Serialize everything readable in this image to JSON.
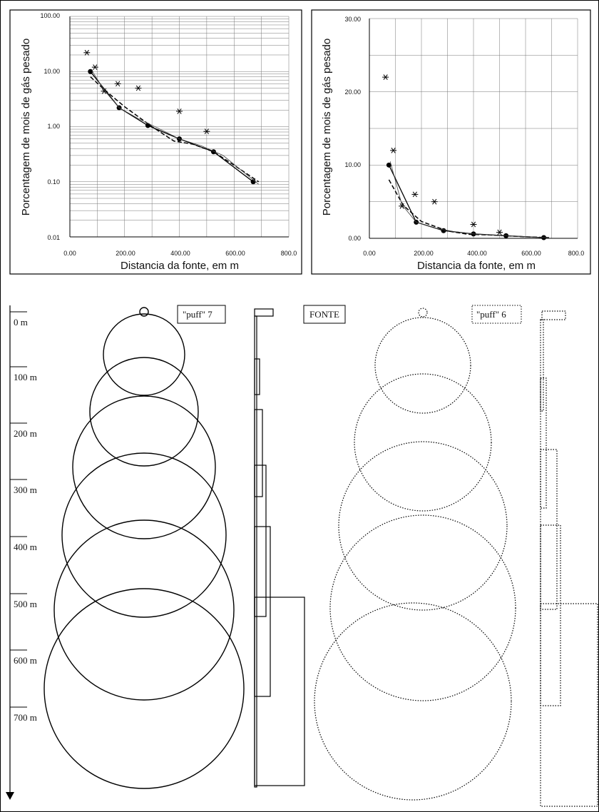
{
  "chart_data": [
    {
      "type": "line",
      "yscale": "log",
      "xlabel": "Distancia da fonte, em m",
      "ylabel": "Porcentagem de mois de gás pesado",
      "xlim": [
        0,
        800
      ],
      "ylim": [
        0.01,
        100
      ],
      "x_ticks": [
        "0.00",
        "200.00",
        "400.00",
        "600.00",
        "800.0"
      ],
      "y_ticks": [
        "0.01",
        "0.10",
        "1.00",
        "10.00",
        "100.00"
      ],
      "series": [
        {
          "style": "dots-solid",
          "x": [
            75,
            180,
            285,
            400,
            525,
            670
          ],
          "y": [
            10,
            2.2,
            1.05,
            0.6,
            0.35,
            0.1
          ]
        },
        {
          "style": "star",
          "x": [
            62,
            92,
            125,
            175,
            250,
            400,
            500
          ],
          "y": [
            22,
            12,
            4.4,
            6,
            5,
            1.9,
            0.82
          ]
        },
        {
          "style": "dashed",
          "x": [
            75,
            130,
            200,
            300,
            380,
            450,
            525,
            600,
            690
          ],
          "y": [
            8,
            4.5,
            2.3,
            1.0,
            0.55,
            0.48,
            0.35,
            0.2,
            0.1
          ]
        },
        {
          "style": "solid-thin",
          "x": [
            80,
            125,
            180,
            250,
            320,
            400,
            480,
            560,
            650,
            690
          ],
          "y": [
            10.5,
            4.6,
            2.2,
            1.4,
            0.95,
            0.6,
            0.45,
            0.3,
            0.13,
            0.09
          ]
        }
      ]
    },
    {
      "type": "line",
      "yscale": "linear",
      "xlabel": "Distancia da fonte, em m",
      "ylabel": "Porcentagem de mois de gás pesado",
      "xlim": [
        0,
        800
      ],
      "ylim": [
        0,
        30
      ],
      "x_ticks": [
        "0.00",
        "200.00",
        "400.00",
        "600.00",
        "800.0"
      ],
      "y_ticks": [
        "0.00",
        "10.00",
        "20.00",
        "30.00"
      ],
      "series": [
        {
          "style": "dots-solid",
          "x": [
            75,
            180,
            285,
            400,
            525,
            670
          ],
          "y": [
            10,
            2.2,
            1.05,
            0.6,
            0.35,
            0.1
          ]
        },
        {
          "style": "star",
          "x": [
            62,
            92,
            125,
            175,
            250,
            400,
            500
          ],
          "y": [
            22,
            12,
            4.4,
            6,
            5,
            1.9,
            0.82
          ]
        },
        {
          "style": "dashed",
          "x": [
            75,
            130,
            200,
            300,
            380,
            450,
            525,
            600,
            690
          ],
          "y": [
            8,
            4.5,
            2.3,
            1.0,
            0.55,
            0.48,
            0.35,
            0.2,
            0.1
          ]
        },
        {
          "style": "solid-thin",
          "x": [
            80,
            125,
            180,
            250,
            320,
            400,
            480,
            560,
            650,
            690
          ],
          "y": [
            10.5,
            4.6,
            2.2,
            1.4,
            0.95,
            0.6,
            0.45,
            0.3,
            0.13,
            0.09
          ]
        }
      ]
    }
  ],
  "diagram": {
    "depth_labels": [
      "0 m",
      "100 m",
      "200 m",
      "300 m",
      "400 m",
      "500 m",
      "600 m",
      "700 m"
    ],
    "source_label": "FONTE",
    "puff_left_label": "\"puff\"  7",
    "puff_right_label": "\"puff\"  6"
  }
}
